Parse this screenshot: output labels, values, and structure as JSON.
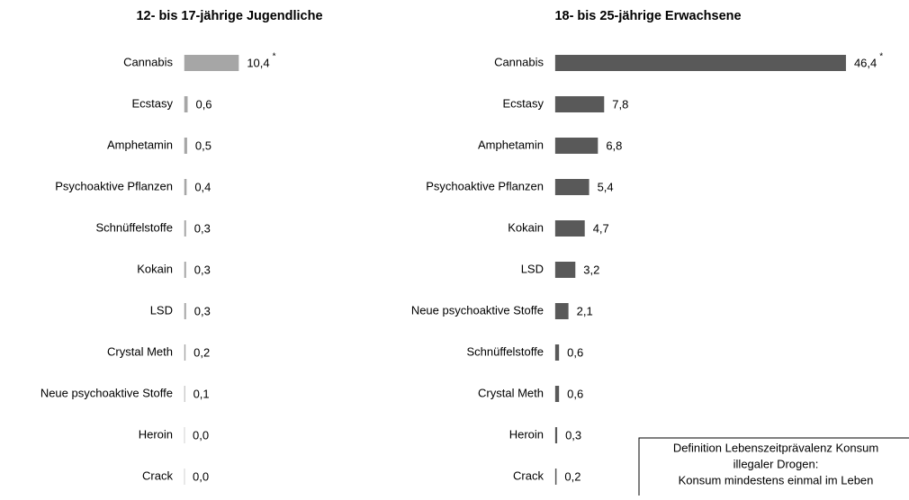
{
  "chart_data": [
    {
      "type": "bar",
      "title": "12- bis 17-jährige Jugendliche",
      "categories": [
        "Cannabis",
        "Ecstasy",
        "Amphetamin",
        "Psychoaktive Pflanzen",
        "Schnüffelstoffe",
        "Kokain",
        "LSD",
        "Crystal Meth",
        "Neue psychoaktive Stoffe",
        "Heroin",
        "Crack"
      ],
      "values": [
        10.4,
        0.6,
        0.5,
        0.4,
        0.3,
        0.3,
        0.3,
        0.2,
        0.1,
        0.0,
        0.0
      ],
      "value_labels": [
        "10,4",
        "0,6",
        "0,5",
        "0,4",
        "0,3",
        "0,3",
        "0,3",
        "0,2",
        "0,1",
        "0,0",
        "0,0"
      ],
      "value_label_marks": [
        "*",
        null,
        null,
        null,
        null,
        null,
        null,
        null,
        null,
        null,
        null
      ],
      "color": "#a6a6a6"
    },
    {
      "type": "bar",
      "title": "18- bis 25-jährige Erwachsene",
      "categories": [
        "Cannabis",
        "Ecstasy",
        "Amphetamin",
        "Psychoaktive Pflanzen",
        "Kokain",
        "LSD",
        "Neue psychoaktive Stoffe",
        "Schnüffelstoffe",
        "Crystal Meth",
        "Heroin",
        "Crack"
      ],
      "values": [
        46.4,
        7.8,
        6.8,
        5.4,
        4.7,
        3.2,
        2.1,
        0.6,
        0.6,
        0.3,
        0.2
      ],
      "value_labels": [
        "46,4",
        "7,8",
        "6,8",
        "5,4",
        "4,7",
        "3,2",
        "2,1",
        "0,6",
        "0,6",
        "0,3",
        "0,2"
      ],
      "value_label_marks": [
        "*",
        null,
        null,
        null,
        null,
        null,
        null,
        null,
        null,
        null,
        null
      ],
      "color": "#595959"
    }
  ],
  "definition_box": {
    "lines": [
      "Definition Lebenszeitprävalenz Konsum",
      "illegaler Drogen:",
      "Konsum mindestens einmal im Leben"
    ]
  }
}
